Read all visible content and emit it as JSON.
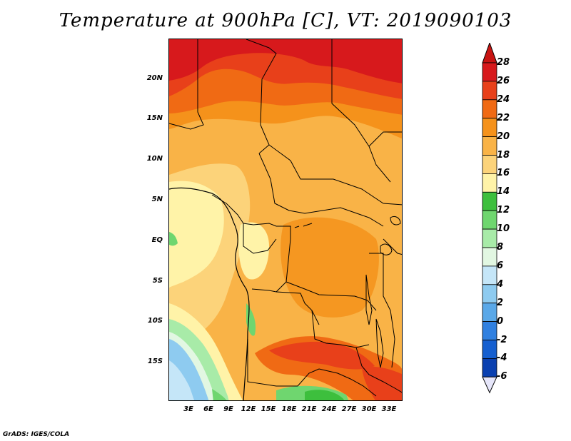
{
  "title": "Temperature at 900hPa [C], VT: 2019090103",
  "credit": "GrADS: IGES/COLA",
  "lat_ticks": [
    "20N",
    "15N",
    "10N",
    "5N",
    "EQ",
    "5S",
    "10S",
    "15S"
  ],
  "lon_ticks": [
    "3E",
    "6E",
    "9E",
    "12E",
    "15E",
    "18E",
    "21E",
    "24E",
    "27E",
    "30E",
    "33E"
  ],
  "colorbar": {
    "labels": [
      "28",
      "26",
      "24",
      "22",
      "20",
      "18",
      "16",
      "14",
      "12",
      "10",
      "8",
      "6",
      "4",
      "2",
      "0",
      "-2",
      "-4",
      "-6"
    ],
    "colors": [
      "#d7191c",
      "#e8401a",
      "#f06a14",
      "#f5921b",
      "#f9b347",
      "#fcd37a",
      "#fff3a8",
      "#3dbf3d",
      "#6fd66f",
      "#a8eba8",
      "#e2f7e2",
      "#c5e6f8",
      "#8ecbf0",
      "#5aa8e8",
      "#3080e0",
      "#155fd0",
      "#0a40b0",
      "#062080",
      "#060a50"
    ],
    "top_color": "#c81412",
    "bottom_color": "#e6e6fa"
  }
}
